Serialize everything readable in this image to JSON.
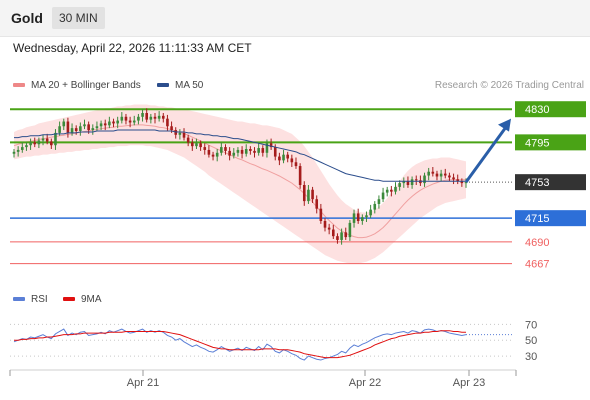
{
  "header": {
    "instrument": "Gold",
    "timeframe": "30 MIN",
    "datetime": "Wednesday, April 22, 2026 11:11:33 AM CET",
    "copyright": "Research © 2026 Trading Central"
  },
  "legend": {
    "bollinger_label": "MA 20 + Bollinger Bands",
    "bollinger_color": "#ee8888",
    "ma50_label": "MA 50",
    "ma50_color": "#2b4d8c"
  },
  "rsi_legend": {
    "rsi_label": "RSI",
    "rsi_color": "#5b7fd6",
    "ma9_label": "9MA",
    "ma9_color": "#e01010"
  },
  "colors": {
    "up": "#3b8a3b",
    "down": "#a51c1c",
    "target": "#4aa316",
    "support": "#2d6fd8",
    "weak_support": "#f06060",
    "last_price": "#333333",
    "arrow": "#2a5ea8"
  },
  "chart_data": [
    {
      "type": "candlestick",
      "ylim": [
        4655,
        4845
      ],
      "x_ticks": [
        "Apr 21",
        "Apr 22",
        "Apr 23"
      ],
      "levels": [
        {
          "value": 4830,
          "label": "4830",
          "kind": "target"
        },
        {
          "value": 4795,
          "label": "4795",
          "kind": "target"
        },
        {
          "value": 4753,
          "label": "4753",
          "kind": "last"
        },
        {
          "value": 4715,
          "label": "4715",
          "kind": "support"
        },
        {
          "value": 4690,
          "label": "4690",
          "kind": "weak_support"
        },
        {
          "value": 4667,
          "label": "4667",
          "kind": "weak_support"
        }
      ],
      "projection": {
        "from": 4753,
        "to": 4820
      },
      "closes": [
        4785,
        4787,
        4790,
        4792,
        4795,
        4793,
        4797,
        4799,
        4796,
        4792,
        4805,
        4812,
        4817,
        4805,
        4810,
        4807,
        4812,
        4814,
        4808,
        4810,
        4812,
        4815,
        4813,
        4817,
        4815,
        4818,
        4822,
        4818,
        4816,
        4818,
        4822,
        4826,
        4819,
        4822,
        4820,
        4823,
        4820,
        4812,
        4808,
        4803,
        4805,
        4800,
        4795,
        4791,
        4794,
        4790,
        4787,
        4782,
        4780,
        4784,
        4790,
        4786,
        4781,
        4784,
        4787,
        4783,
        4788,
        4786,
        4784,
        4789,
        4784,
        4794,
        4790,
        4780,
        4776,
        4782,
        4778,
        4774,
        4770,
        4750,
        4733,
        4745,
        4735,
        4725,
        4712,
        4705,
        4703,
        4696,
        4692,
        4700,
        4695,
        4710,
        4720,
        4712,
        4716,
        4718,
        4724,
        4730,
        4735,
        4742,
        4745,
        4743,
        4748,
        4752,
        4754,
        4750,
        4756,
        4755,
        4752,
        4760,
        4764,
        4762,
        4759,
        4762,
        4760,
        4758,
        4756,
        4754,
        4752,
        4753
      ],
      "bb_upper": [
        4806,
        4808,
        4809,
        4811,
        4812,
        4813,
        4815,
        4816,
        4817,
        4818,
        4819,
        4820,
        4821,
        4822,
        4823,
        4824,
        4825,
        4826,
        4827,
        4828,
        4829,
        4830,
        4831,
        4831,
        4832,
        4833,
        4833,
        4834,
        4834,
        4835,
        4835,
        4835,
        4835,
        4834,
        4834,
        4833,
        4833,
        4832,
        4832,
        4831,
        4830,
        4830,
        4829,
        4828,
        4827,
        4826,
        4825,
        4824,
        4823,
        4822,
        4821,
        4820,
        4819,
        4818,
        4817,
        4817,
        4816,
        4815,
        4815,
        4814,
        4813,
        4813,
        4812,
        4811,
        4810,
        4808,
        4806,
        4804,
        4800,
        4796,
        4791,
        4785,
        4779,
        4772,
        4765,
        4758,
        4751,
        4745,
        4739,
        4734,
        4730,
        4727,
        4724,
        4722,
        4721,
        4721,
        4722,
        4724,
        4727,
        4731,
        4736,
        4742,
        4748,
        4754,
        4760,
        4765,
        4769,
        4772,
        4774,
        4776,
        4777,
        4778,
        4778,
        4779,
        4779,
        4779,
        4778,
        4777,
        4776,
        4775
      ],
      "bb_lower": [
        4777,
        4778,
        4779,
        4780,
        4780,
        4781,
        4781,
        4782,
        4782,
        4783,
        4783,
        4784,
        4784,
        4785,
        4785,
        4786,
        4786,
        4787,
        4787,
        4788,
        4788,
        4789,
        4789,
        4790,
        4790,
        4791,
        4791,
        4791,
        4792,
        4792,
        4792,
        4792,
        4791,
        4791,
        4790,
        4789,
        4788,
        4787,
        4785,
        4783,
        4781,
        4779,
        4776,
        4773,
        4770,
        4767,
        4764,
        4760,
        4757,
        4754,
        4751,
        4748,
        4745,
        4742,
        4739,
        4736,
        4733,
        4730,
        4727,
        4724,
        4721,
        4718,
        4715,
        4712,
        4709,
        4706,
        4703,
        4700,
        4697,
        4694,
        4691,
        4688,
        4685,
        4682,
        4679,
        4676,
        4674,
        4672,
        4670,
        4669,
        4668,
        4667,
        4667,
        4667,
        4668,
        4669,
        4671,
        4673,
        4676,
        4679,
        4683,
        4687,
        4691,
        4695,
        4699,
        4703,
        4707,
        4711,
        4715,
        4718,
        4721,
        4724,
        4727,
        4729,
        4731,
        4732,
        4733,
        4734,
        4735,
        4736
      ],
      "ma50": [
        4800,
        4800,
        4801,
        4801,
        4802,
        4802,
        4802,
        4803,
        4803,
        4803,
        4804,
        4804,
        4804,
        4805,
        4805,
        4805,
        4806,
        4806,
        4806,
        4806,
        4807,
        4807,
        4807,
        4807,
        4807,
        4808,
        4808,
        4808,
        4808,
        4808,
        4808,
        4808,
        4808,
        4808,
        4808,
        4807,
        4807,
        4807,
        4807,
        4806,
        4806,
        4806,
        4805,
        4805,
        4804,
        4804,
        4803,
        4803,
        4802,
        4802,
        4801,
        4801,
        4800,
        4799,
        4799,
        4798,
        4797,
        4796,
        4795,
        4794,
        4793,
        4792,
        4791,
        4790,
        4789,
        4788,
        4787,
        4786,
        4785,
        4783,
        4782,
        4780,
        4778,
        4776,
        4774,
        4772,
        4770,
        4768,
        4766,
        4764,
        4762,
        4761,
        4760,
        4759,
        4758,
        4757,
        4756,
        4755,
        4755,
        4754,
        4754,
        4754,
        4754,
        4754,
        4754,
        4754,
        4754,
        4754,
        4754,
        4754,
        4754,
        4754,
        4754,
        4754,
        4754,
        4754,
        4754,
        4754,
        4754,
        4754
      ]
    },
    {
      "type": "line",
      "ylim": [
        20,
        78
      ],
      "y_ticks": [
        70,
        50,
        30
      ],
      "series": [
        {
          "name": "RSI",
          "values": [
            48,
            50,
            52,
            51,
            54,
            53,
            55,
            57,
            54,
            52,
            58,
            61,
            64,
            56,
            59,
            57,
            60,
            61,
            56,
            57,
            58,
            60,
            58,
            62,
            60,
            62,
            64,
            61,
            59,
            60,
            62,
            64,
            60,
            62,
            60,
            62,
            60,
            56,
            54,
            50,
            52,
            48,
            45,
            42,
            44,
            41,
            39,
            36,
            35,
            38,
            42,
            39,
            36,
            38,
            40,
            37,
            41,
            39,
            37,
            42,
            38,
            45,
            42,
            36,
            34,
            38,
            36,
            33,
            31,
            27,
            25,
            30,
            28,
            26,
            25,
            27,
            28,
            30,
            32,
            36,
            34,
            40,
            44,
            42,
            45,
            47,
            50,
            53,
            55,
            57,
            58,
            57,
            59,
            60,
            61,
            59,
            62,
            61,
            59,
            63,
            64,
            63,
            61,
            62,
            61,
            59,
            58,
            57,
            56,
            57
          ]
        },
        {
          "name": "9MA",
          "values": [
            50,
            50,
            51,
            51,
            52,
            52,
            53,
            53,
            54,
            54,
            55,
            56,
            57,
            57,
            57,
            58,
            58,
            59,
            59,
            59,
            59,
            59,
            59,
            60,
            60,
            60,
            60,
            61,
            61,
            61,
            61,
            61,
            61,
            61,
            61,
            61,
            61,
            60,
            59,
            58,
            57,
            55,
            53,
            51,
            49,
            47,
            45,
            43,
            41,
            40,
            39,
            39,
            38,
            38,
            38,
            38,
            38,
            38,
            38,
            38,
            39,
            39,
            39,
            39,
            38,
            38,
            38,
            37,
            36,
            35,
            33,
            32,
            31,
            30,
            29,
            28,
            28,
            28,
            28,
            29,
            30,
            31,
            33,
            35,
            37,
            39,
            41,
            44,
            46,
            48,
            50,
            52,
            53,
            55,
            56,
            57,
            58,
            59,
            59,
            60,
            60,
            61,
            61,
            62,
            62,
            62,
            61,
            61,
            60,
            60
          ]
        }
      ]
    }
  ]
}
